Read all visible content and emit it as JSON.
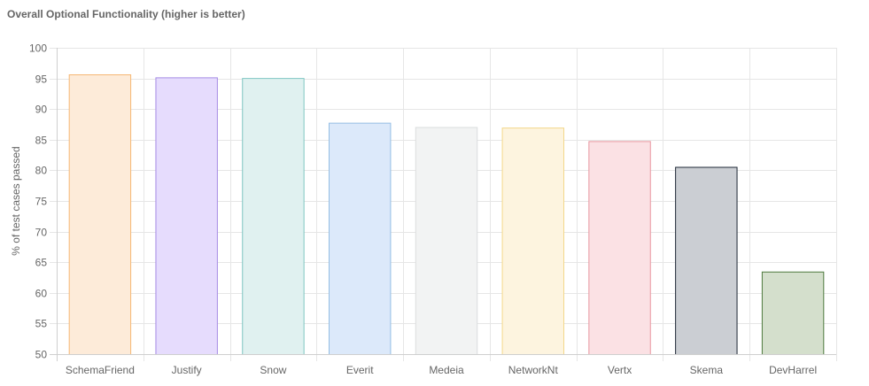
{
  "chart_data": {
    "type": "bar",
    "title": "Overall Optional Functionality (higher is better)",
    "xlabel": "",
    "ylabel": "% of test cases passed",
    "ylim": [
      50,
      100
    ],
    "yticks": [
      50,
      55,
      60,
      65,
      70,
      75,
      80,
      85,
      90,
      95,
      100
    ],
    "grid": true,
    "categories": [
      "SchemaFriend",
      "Justify",
      "Snow",
      "Everit",
      "Medeia",
      "NetworkNt",
      "Vertx",
      "Skema",
      "DevHarrel"
    ],
    "values": [
      95.6,
      95.1,
      95.0,
      87.7,
      87.0,
      86.9,
      84.7,
      80.5,
      63.4
    ],
    "colors": {
      "fill": [
        "#fdebd9",
        "#e6dcfd",
        "#e0f1f0",
        "#dce9fa",
        "#f2f3f3",
        "#fdf4df",
        "#fbe1e4",
        "#cbced3",
        "#d4dfcc"
      ],
      "stroke": [
        "#f5b774",
        "#a48ae4",
        "#7fc6c2",
        "#94bde4",
        "#dadcdd",
        "#f3d78a",
        "#e8969f",
        "#1d2734",
        "#4e7a3e"
      ]
    }
  }
}
